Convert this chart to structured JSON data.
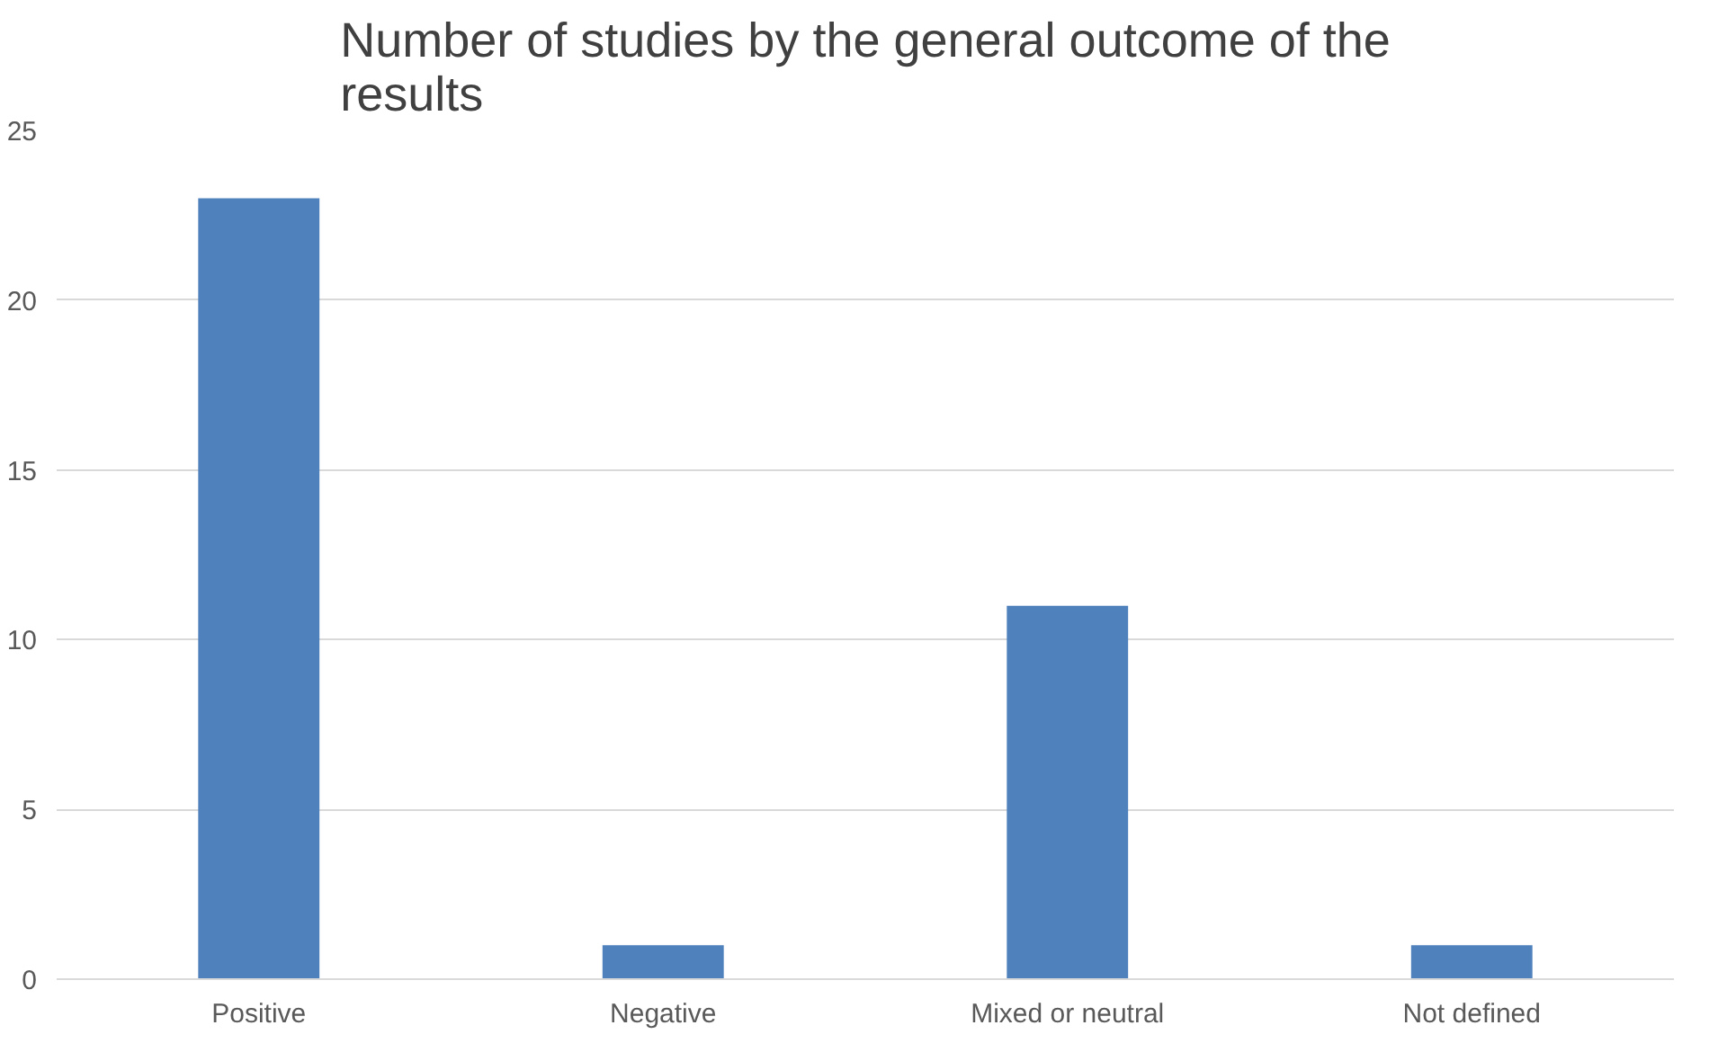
{
  "chart_data": {
    "type": "bar",
    "title": "Number of studies by the general outcome of the results",
    "categories": [
      "Positive",
      "Negative",
      "Mixed or neutral",
      "Not defined"
    ],
    "values": [
      23,
      1,
      11,
      1
    ],
    "color": "#4f81bd",
    "ylim": [
      0,
      25
    ],
    "yticks": [
      0,
      5,
      10,
      15,
      20,
      25
    ],
    "grid": "y"
  }
}
